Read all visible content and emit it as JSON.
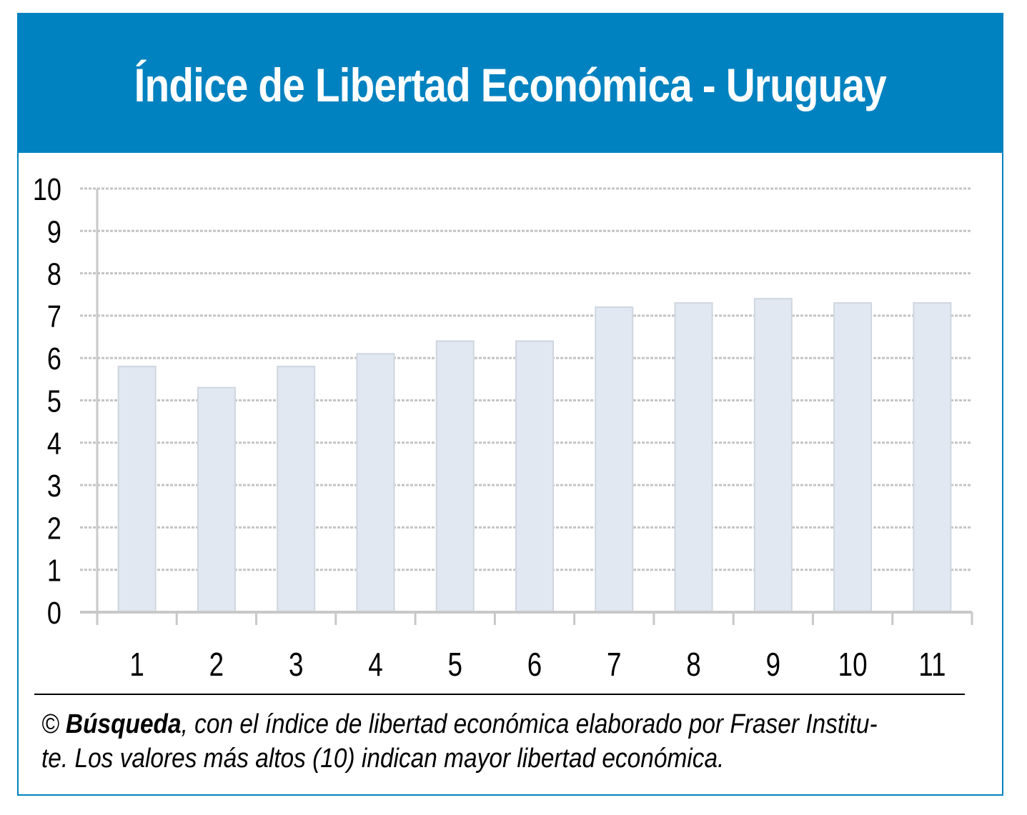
{
  "colors": {
    "header_bg": "#0082c0",
    "border": "#0082c0",
    "bar_fill": "#e1e8f2",
    "bar_edge": "#cfd6df",
    "grid": "#c4c4c4",
    "axis": "#c8c8c8",
    "text": "#000000"
  },
  "chart_data": {
    "type": "bar",
    "title": "Índice de Libertad Económica - Uruguay",
    "categories": [
      "1",
      "2",
      "3",
      "4",
      "5",
      "6",
      "7",
      "8",
      "9",
      "10",
      "11"
    ],
    "values": [
      5.8,
      5.3,
      5.8,
      6.1,
      6.4,
      6.4,
      7.2,
      7.3,
      7.4,
      7.3,
      7.3
    ],
    "yticks": [
      "0",
      "1",
      "2",
      "3",
      "4",
      "5",
      "6",
      "7",
      "8",
      "9",
      "10"
    ],
    "ylim": [
      0,
      10
    ],
    "grid": true,
    "legend": "none"
  },
  "footnote": {
    "symbol": "©",
    "brand": "Búsqueda",
    "line1_rest": ", con el índice de libertad económica elaborado por Fraser Institu-",
    "line2": "te. Los valores más altos (10) indican mayor libertad económica."
  }
}
